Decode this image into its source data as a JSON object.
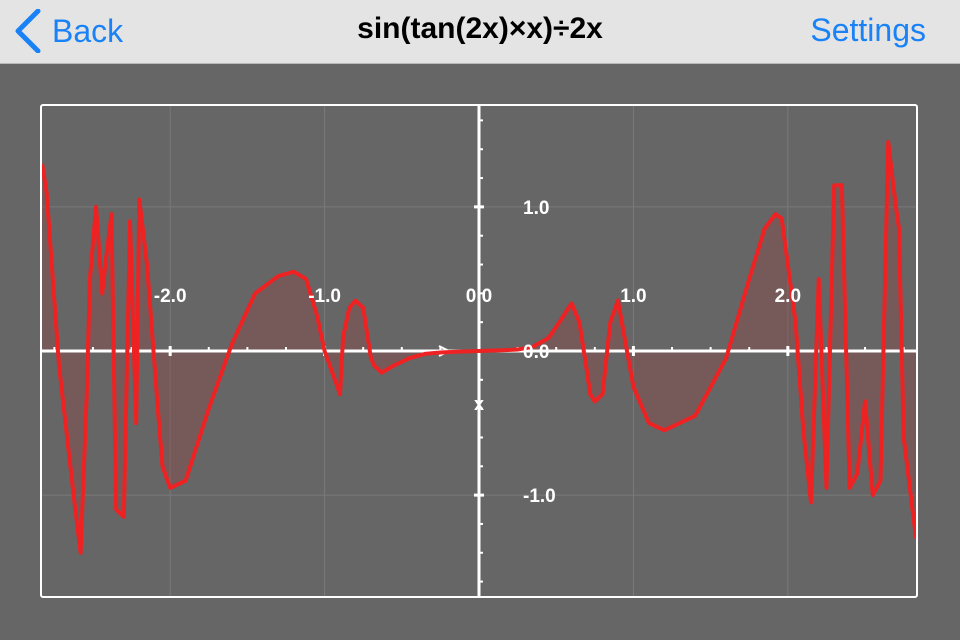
{
  "navbar": {
    "back_label": "Back",
    "title": "sin(tan(2x)×x)÷2x",
    "settings_label": "Settings",
    "accent_color": "#1a82f7"
  },
  "plot": {
    "background": "#666666",
    "grid_color": "#7a7a7a",
    "axis_color": "#ffffff",
    "line_color": "#ee2222",
    "fill_color": "rgba(150,70,70,0.35)",
    "x_label_text": "0.0",
    "y_label_text": "0.0",
    "x_axis_marker": "x"
  },
  "chart_data": {
    "type": "line",
    "function": "sin(tan(2x)×x)÷2x",
    "x_range": [
      -2.83,
      2.83
    ],
    "y_range": [
      -1.7,
      1.7
    ],
    "grid": true,
    "x_ticks": [
      {
        "value": -2.0,
        "label": "-2.0"
      },
      {
        "value": -1.0,
        "label": "-1.0"
      },
      {
        "value": 0.0,
        "label": "0.0"
      },
      {
        "value": 1.0,
        "label": "1.0"
      },
      {
        "value": 2.0,
        "label": "2.0"
      }
    ],
    "y_ticks": [
      {
        "value": 1.0,
        "label": "1.0"
      },
      {
        "value": 0.0,
        "label": "0.0"
      },
      {
        "value": -1.0,
        "label": "-1.0"
      }
    ],
    "series": [
      {
        "x": [
          -2.83,
          -2.8,
          -2.72,
          -2.62,
          -2.58,
          -2.54,
          -2.52,
          -2.48,
          -2.44,
          -2.42,
          -2.38,
          -2.35,
          -2.3,
          -2.26,
          -2.22,
          -2.2,
          -2.15,
          -2.08,
          -2.05,
          -2.0,
          -1.9,
          -1.75,
          -1.6,
          -1.45,
          -1.3,
          -1.2,
          -1.12,
          -1.05,
          -1.0,
          -0.95,
          -0.9,
          -0.88,
          -0.84,
          -0.8,
          -0.75,
          -0.7,
          -0.68,
          -0.63,
          -0.55,
          -0.45,
          -0.35,
          -0.25,
          -0.15,
          0.0,
          0.15,
          0.25,
          0.35,
          0.45,
          0.52,
          0.58,
          0.6,
          0.65,
          0.7,
          0.72,
          0.75,
          0.8,
          0.85,
          0.9,
          1.0,
          1.1,
          1.2,
          1.4,
          1.6,
          1.75,
          1.85,
          1.92,
          1.96,
          2.0,
          2.05,
          2.1,
          2.15,
          2.2,
          2.25,
          2.3,
          2.35,
          2.4,
          2.45,
          2.5,
          2.55,
          2.6,
          2.65,
          2.7,
          2.72,
          2.75,
          2.83
        ],
        "y": [
          1.3,
          1.1,
          -0.1,
          -1.05,
          -1.4,
          -0.3,
          0.5,
          1.0,
          0.4,
          0.6,
          0.95,
          -1.1,
          -1.15,
          0.9,
          -0.5,
          1.05,
          0.6,
          -0.4,
          -0.8,
          -0.95,
          -0.9,
          -0.4,
          0.05,
          0.4,
          0.52,
          0.55,
          0.5,
          0.25,
          0.0,
          -0.15,
          -0.3,
          0.1,
          0.3,
          0.35,
          0.3,
          -0.05,
          -0.1,
          -0.15,
          -0.1,
          -0.05,
          -0.02,
          -0.01,
          -0.005,
          0.0,
          0.005,
          0.01,
          0.03,
          0.09,
          0.2,
          0.3,
          0.33,
          0.2,
          -0.15,
          -0.3,
          -0.35,
          -0.3,
          0.2,
          0.35,
          -0.25,
          -0.5,
          -0.55,
          -0.45,
          -0.05,
          0.5,
          0.85,
          0.95,
          0.92,
          0.6,
          0.2,
          -0.55,
          -1.05,
          0.5,
          -0.95,
          1.15,
          1.15,
          -0.95,
          -0.85,
          -0.35,
          -1.0,
          -0.9,
          1.45,
          1.0,
          0.85,
          -0.6,
          -1.3
        ]
      }
    ]
  }
}
